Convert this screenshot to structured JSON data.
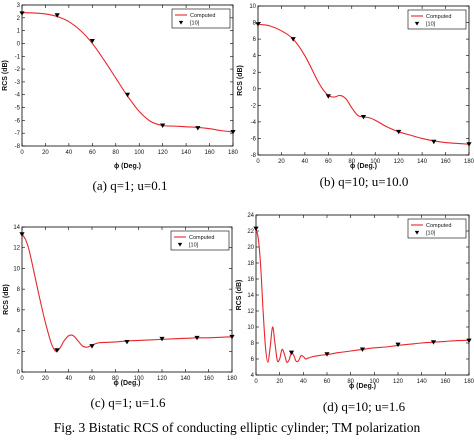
{
  "figure_caption": "Fig. 3 Bistatic RCS of conducting elliptic cylinder; TM polarization",
  "chart_data": [
    {
      "type": "line",
      "caption": "(a) q=1; u=0.1",
      "xlabel": "ϕ (Deg.)",
      "ylabel": "RCS (dB)",
      "xlim": [
        0,
        180
      ],
      "ylim": [
        -8,
        3
      ],
      "xticks": [
        0,
        20,
        40,
        60,
        80,
        100,
        120,
        140,
        160,
        180
      ],
      "yticks": [
        -8,
        -7,
        -6,
        -5,
        -4,
        -3,
        -2,
        -1,
        0,
        1,
        2,
        3
      ],
      "grid": false,
      "legend": [
        "Computed",
        "[10]"
      ],
      "legend_position": "top-right",
      "series": [
        {
          "name": "Computed",
          "style": "line",
          "color": "#e8262c",
          "x": [
            0,
            10,
            20,
            30,
            40,
            50,
            60,
            70,
            80,
            90,
            100,
            110,
            120,
            130,
            140,
            150,
            160,
            170,
            180
          ],
          "y": [
            2.4,
            2.38,
            2.3,
            2.1,
            1.7,
            1.0,
            0.0,
            -1.3,
            -2.7,
            -4.1,
            -5.3,
            -6.1,
            -6.4,
            -6.45,
            -6.5,
            -6.55,
            -6.65,
            -6.8,
            -6.9
          ]
        },
        {
          "name": "[10]",
          "style": "marker",
          "marker": "down-triangle",
          "color": "#000000",
          "x": [
            0,
            30,
            60,
            90,
            120,
            150,
            180
          ],
          "y": [
            2.35,
            2.2,
            0.2,
            -4.0,
            -6.4,
            -6.6,
            -6.9
          ]
        }
      ]
    },
    {
      "type": "line",
      "caption": "(b) q=10; u=10.0",
      "xlabel": "ϕ (Deg.)",
      "ylabel": "RCS (dB)",
      "xlim": [
        0,
        180
      ],
      "ylim": [
        -8,
        10
      ],
      "xticks": [
        0,
        20,
        40,
        60,
        80,
        100,
        120,
        140,
        160,
        180
      ],
      "yticks": [
        -8,
        -6,
        -4,
        -2,
        0,
        2,
        4,
        6,
        8,
        10
      ],
      "grid": false,
      "legend": [
        "Computed",
        "[10]"
      ],
      "legend_position": "top-right",
      "series": [
        {
          "name": "Computed",
          "style": "line",
          "color": "#e8262c",
          "x": [
            0,
            10,
            20,
            30,
            40,
            50,
            55,
            60,
            65,
            70,
            75,
            80,
            85,
            90,
            95,
            100,
            110,
            120,
            130,
            140,
            150,
            160,
            170,
            180
          ],
          "y": [
            7.8,
            7.6,
            7.0,
            6.0,
            4.0,
            1.2,
            0.0,
            -0.8,
            -1.0,
            -0.8,
            -1.2,
            -2.3,
            -3.2,
            -3.4,
            -3.5,
            -3.8,
            -4.6,
            -5.2,
            -5.6,
            -6.0,
            -6.3,
            -6.5,
            -6.6,
            -6.7
          ]
        },
        {
          "name": "[10]",
          "style": "marker",
          "marker": "down-triangle",
          "color": "#000000",
          "x": [
            0,
            30,
            60,
            90,
            120,
            150,
            180
          ],
          "y": [
            7.8,
            6.0,
            -0.9,
            -3.4,
            -5.2,
            -6.4,
            -6.7
          ]
        }
      ]
    },
    {
      "type": "line",
      "caption": "(c) q=1; u=1.6",
      "xlabel": "ϕ (Deg.)",
      "ylabel": "RCS (dB)",
      "xlim": [
        0,
        180
      ],
      "ylim": [
        0,
        14
      ],
      "xticks": [
        0,
        20,
        40,
        60,
        80,
        100,
        120,
        140,
        160,
        180
      ],
      "yticks": [
        0,
        2,
        4,
        6,
        8,
        10,
        12,
        14
      ],
      "grid": false,
      "legend": [
        "Computed",
        "[10]"
      ],
      "legend_position": "top-right",
      "series": [
        {
          "name": "Computed",
          "style": "line",
          "color": "#e8262c",
          "x": [
            0,
            3,
            6,
            10,
            15,
            20,
            25,
            28,
            30,
            33,
            36,
            40,
            44,
            48,
            52,
            56,
            60,
            65,
            70,
            80,
            90,
            100,
            110,
            120,
            130,
            140,
            150,
            160,
            170,
            180
          ],
          "y": [
            13.3,
            12.8,
            11.8,
            9.8,
            7.2,
            4.8,
            2.8,
            2.1,
            2.0,
            2.4,
            3.0,
            3.5,
            3.5,
            3.0,
            2.5,
            2.4,
            2.6,
            2.8,
            2.85,
            2.9,
            3.0,
            3.05,
            3.1,
            3.15,
            3.2,
            3.25,
            3.3,
            3.3,
            3.35,
            3.4
          ]
        },
        {
          "name": "[10]",
          "style": "marker",
          "marker": "down-triangle",
          "color": "#000000",
          "x": [
            0,
            30,
            60,
            90,
            120,
            150,
            180
          ],
          "y": [
            13.3,
            2.1,
            2.5,
            2.9,
            3.2,
            3.3,
            3.4
          ]
        }
      ]
    },
    {
      "type": "line",
      "caption": "(d) q=10; u=1.6",
      "xlabel": "ϕ (Deg.)",
      "ylabel": "RCS (dB)",
      "xlim": [
        0,
        180
      ],
      "ylim": [
        4,
        24
      ],
      "xticks": [
        0,
        20,
        40,
        60,
        80,
        100,
        120,
        140,
        160,
        180
      ],
      "yticks": [
        4,
        6,
        8,
        10,
        12,
        14,
        16,
        18,
        20,
        22,
        24
      ],
      "grid": false,
      "legend": [
        "Computed",
        "[10]"
      ],
      "legend_position": "top-right",
      "series": [
        {
          "name": "Computed",
          "style": "line",
          "color": "#e8262c",
          "x": [
            0,
            2,
            4,
            6,
            8,
            10,
            12,
            14,
            16,
            18,
            20,
            22,
            24,
            26,
            28,
            30,
            32,
            34,
            36,
            38,
            40,
            42,
            44,
            48,
            52,
            56,
            60,
            70,
            80,
            90,
            100,
            110,
            120,
            130,
            140,
            150,
            160,
            170,
            180
          ],
          "y": [
            22.3,
            21.0,
            17.5,
            12.0,
            7.5,
            5.6,
            7.5,
            10.0,
            8.0,
            5.8,
            6.0,
            7.2,
            6.6,
            5.6,
            5.9,
            6.8,
            6.4,
            5.7,
            5.8,
            6.4,
            6.3,
            6.0,
            6.1,
            6.3,
            6.4,
            6.5,
            6.55,
            6.8,
            7.0,
            7.2,
            7.4,
            7.5,
            7.7,
            7.85,
            8.0,
            8.1,
            8.2,
            8.3,
            8.35
          ]
        },
        {
          "name": "[10]",
          "style": "marker",
          "marker": "down-triangle",
          "color": "#000000",
          "x": [
            0,
            30,
            60,
            90,
            120,
            150,
            180
          ],
          "y": [
            22.3,
            6.8,
            6.6,
            7.2,
            7.8,
            8.1,
            8.3
          ]
        }
      ]
    }
  ]
}
